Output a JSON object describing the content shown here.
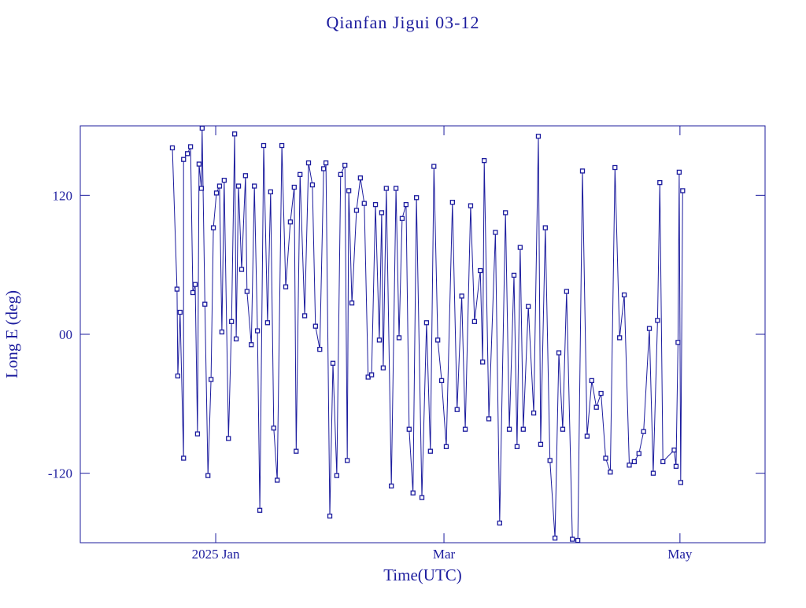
{
  "chart_data": {
    "type": "line",
    "title": "Qianfan Jigui 03-12",
    "xlabel": "Time(UTC)",
    "ylabel": "Long E (deg)",
    "color": "#1c1c9e",
    "markers": true,
    "xlim": [
      -35,
      142
    ],
    "xticks": [
      {
        "value": 0,
        "label": "2025 Jan"
      },
      {
        "value": 59,
        "label": "Mar"
      },
      {
        "value": 120,
        "label": "May"
      }
    ],
    "ylim": [
      -180,
      180
    ],
    "yticks": [
      -120,
      {
        "value": 0,
        "label": "00"
      },
      120
    ],
    "x": [
      -11.2,
      -10,
      -9.8,
      -9.2,
      -8.3,
      -8.3,
      -7.3,
      -6.5,
      -5.9,
      -5.3,
      -4.7,
      -4.3,
      -3.7,
      -3.5,
      -2.8,
      -2.0,
      -1.2,
      -0.6,
      0.2,
      1,
      1.6,
      2.2,
      3.3,
      4.1,
      4.9,
      5.3,
      5.9,
      6.7,
      7.7,
      8.1,
      9.2,
      10,
      10.8,
      11.4,
      12.4,
      13.4,
      14.2,
      15,
      15.9,
      17.1,
      18.1,
      19.3,
      20.3,
      20.8,
      21.8,
      23,
      24,
      25,
      25.8,
      26.9,
      27.9,
      28.5,
      29.5,
      30.3,
      31.3,
      32.3,
      33.4,
      34,
      34.4,
      35.2,
      36.4,
      37.4,
      38.4,
      39.4,
      40.3,
      41.3,
      42.3,
      42.9,
      43.3,
      44.1,
      45.4,
      46.6,
      47.4,
      48.2,
      49.2,
      50,
      51,
      51.9,
      53.3,
      54.5,
      55.5,
      56.4,
      57.4,
      58.4,
      59.6,
      61.2,
      62.4,
      63.6,
      64.5,
      65.9,
      66.9,
      68.4,
      69,
      69.4,
      70.6,
      72.3,
      73.4,
      74.9,
      75.9,
      77.1,
      77.9,
      78.7,
      79.5,
      80.8,
      82.2,
      83.4,
      84,
      85.2,
      86.4,
      87.7,
      88.7,
      89.7,
      90.7,
      92.2,
      93.6,
      94.8,
      96,
      97.2,
      98.4,
      99.6,
      100.8,
      102,
      103.2,
      104.4,
      105.6,
      106.9,
      108.2,
      109.4,
      110.6,
      112.1,
      113.1,
      114.2,
      114.8,
      115.6,
      118.5,
      119,
      119.5,
      119.8,
      120.2,
      120.7
    ],
    "values": [
      161,
      39,
      -36,
      19,
      -107,
      151,
      156,
      162,
      36,
      43,
      -86,
      147,
      126,
      178,
      26,
      -122,
      -39,
      92,
      122,
      128,
      2,
      133,
      -90,
      11,
      173,
      -4,
      128,
      56,
      137,
      37,
      -9,
      128,
      3,
      -152,
      163,
      10,
      123,
      -81,
      -126,
      163,
      41,
      97,
      127,
      -101,
      138,
      16,
      148,
      129,
      7,
      -13,
      143,
      148,
      -157,
      -25,
      -122,
      138,
      146,
      -109,
      124,
      27,
      107,
      135,
      113,
      -37,
      -35,
      112,
      -5,
      105,
      -29,
      126,
      -131,
      126,
      -3,
      100,
      112,
      -82,
      -137,
      118,
      -141,
      10,
      -101,
      145,
      -5,
      -40,
      -97,
      114,
      -65,
      33,
      -82,
      111,
      11,
      55,
      -24,
      150,
      -73,
      88,
      -163,
      105,
      -82,
      51,
      -97,
      75,
      -82,
      24,
      -68,
      171,
      -95,
      92,
      -109,
      -176,
      -16,
      -82,
      37,
      -177,
      -178,
      141,
      -88,
      -40,
      -63,
      -51,
      -107,
      -119,
      144,
      -3,
      34,
      -113,
      -110,
      -103,
      -84,
      5,
      -120,
      12,
      131,
      -110,
      -100,
      -114,
      -7,
      140,
      -128,
      124
    ]
  }
}
